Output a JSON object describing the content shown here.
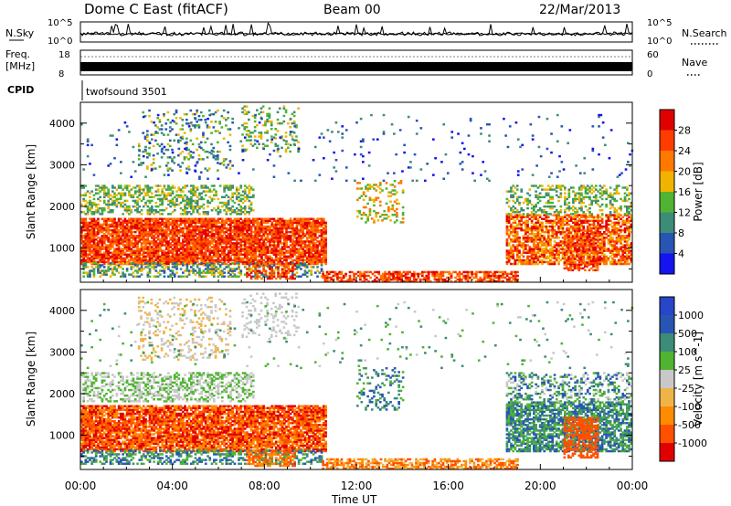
{
  "header": {
    "title": "Dome C East (fitACF)",
    "beam": "Beam 00",
    "date": "22/Mar/2013"
  },
  "top_panels": {
    "nsky_label": "N.Sky",
    "nsearch_label": "N.Search",
    "nsky_ticks": [
      "10^5",
      "10^0"
    ],
    "nsearch_ticks": [
      "10^5",
      "10^0"
    ],
    "freq_label_1": "Freq.",
    "freq_label_2": "[MHz]",
    "freq_ticks": [
      "18",
      "8"
    ],
    "nave_label": "Nave",
    "nave_ticks": [
      "60",
      "0"
    ],
    "cpid_label": "CPID",
    "cpid_value": "twofsound 3501"
  },
  "colors": {
    "power": [
      "#1414f0",
      "#2855b4",
      "#3c8c78",
      "#50b432",
      "#f0b400",
      "#ff7800",
      "#ff3c00",
      "#e10000"
    ],
    "velocity": [
      "#e10000",
      "#ff5000",
      "#ff8c00",
      "#f0b446",
      "#c8c8c8",
      "#50b432",
      "#3c8c78",
      "#2855b4",
      "#2846c8"
    ]
  },
  "chart_data": [
    {
      "type": "heatmap",
      "panel": "power",
      "ylabel": "Slant Range [km]",
      "ylim": [
        180,
        4500
      ],
      "yticks": [
        "1000",
        "2000",
        "3000",
        "4000"
      ],
      "colorbar_label": "Power [dB]",
      "colorbar_ticks": [
        "4",
        "8",
        "12",
        "16",
        "20",
        "24",
        "28"
      ],
      "colorbar_range": [
        0,
        32
      ]
    },
    {
      "type": "heatmap",
      "panel": "velocity",
      "ylabel": "Slant Range [km]",
      "ylim": [
        180,
        4500
      ],
      "yticks": [
        "1000",
        "2000",
        "3000",
        "4000"
      ],
      "colorbar_label": "Velocity [m s^-1]",
      "colorbar_ticks": [
        "1000",
        "500",
        "100",
        "25",
        "-25",
        "-100",
        "-500",
        "-1000"
      ]
    }
  ],
  "x_axis": {
    "label": "Time UT",
    "ticks": [
      "00:00",
      "04:00",
      "08:00",
      "12:00",
      "16:00",
      "20:00",
      "00:00"
    ],
    "xlim_hours": [
      0,
      24
    ]
  }
}
